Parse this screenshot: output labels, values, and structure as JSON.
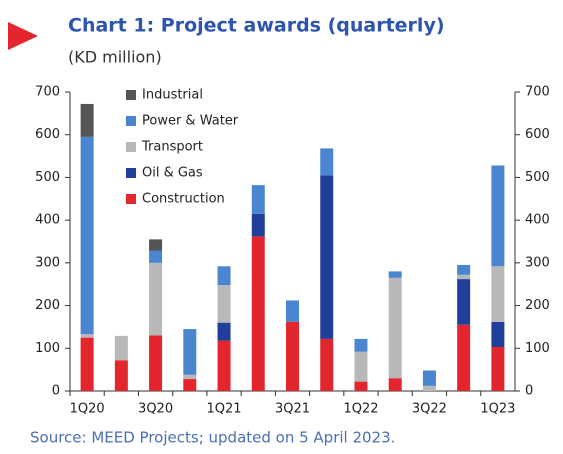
{
  "chart_data": {
    "type": "stacked_bar",
    "title": "Chart 1: Project awards (quarterly)",
    "subtitle": "(KD million)",
    "source": "Source: MEED Projects; updated on 5 April 2023.",
    "categories": [
      "1Q20",
      null,
      "3Q20",
      null,
      "1Q21",
      null,
      "3Q21",
      null,
      "1Q22",
      null,
      "3Q22",
      null,
      "1Q23"
    ],
    "series": [
      {
        "name": "Construction",
        "color": "#e3262e",
        "values": [
          125,
          72,
          130,
          28,
          118,
          362,
          162,
          122,
          22,
          30,
          0,
          155,
          103
        ]
      },
      {
        "name": "Oil & Gas",
        "color": "#1f3f9a",
        "values": [
          0,
          0,
          0,
          0,
          42,
          53,
          0,
          383,
          0,
          0,
          0,
          107,
          59
        ]
      },
      {
        "name": "Transport",
        "color": "#b8b8b8",
        "values": [
          8,
          57,
          170,
          10,
          88,
          0,
          0,
          0,
          70,
          235,
          12,
          10,
          130
        ]
      },
      {
        "name": "Power & Water",
        "color": "#4a86d0",
        "values": [
          462,
          0,
          28,
          107,
          44,
          67,
          50,
          63,
          30,
          15,
          36,
          23,
          236
        ]
      },
      {
        "name": "Industrial",
        "color": "#555555",
        "values": [
          77,
          0,
          27,
          0,
          0,
          0,
          0,
          0,
          0,
          0,
          0,
          0,
          0
        ]
      }
    ],
    "ylim": [
      0,
      700
    ],
    "yticks": [
      0,
      100,
      200,
      300,
      400,
      500,
      600,
      700
    ],
    "y2lim": [
      0,
      700
    ],
    "y2ticks": [
      0,
      100,
      200,
      300,
      400,
      500,
      600,
      700
    ],
    "legend": "top-left"
  }
}
